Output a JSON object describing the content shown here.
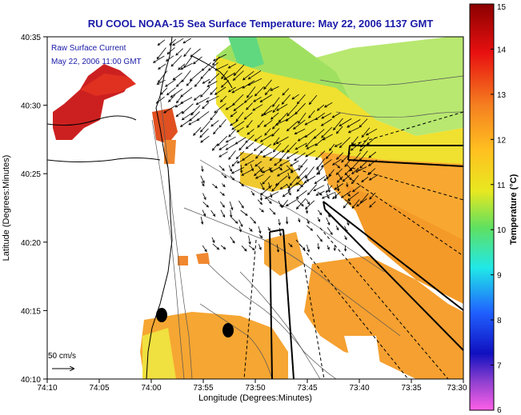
{
  "title": "RU COOL  NOAA-15  Sea Surface Temperature:  May 22, 2006 1137 GMT",
  "current_label": {
    "line1": "Raw Surface Current",
    "line2": "May 22, 2006 11:00 GMT"
  },
  "scale": {
    "label": "50 cm/s"
  },
  "axes": {
    "xlabel": "Longitude (Degrees:Minutes)",
    "ylabel": "Latitude (Degrees:Minutes)",
    "xticks": [
      "74:10",
      "74:05",
      "74:00",
      "73:55",
      "73:50",
      "73:45",
      "73:40",
      "73:35",
      "73:30"
    ],
    "yticks": [
      "40:35",
      "40:30",
      "40:25",
      "40:20",
      "40:15",
      "40:10"
    ]
  },
  "colorbar": {
    "label": "Temperature (°C)",
    "ticks": [
      "15",
      "14",
      "13",
      "12",
      "11",
      "10",
      "9",
      "8",
      "7",
      "6"
    ],
    "min": 6,
    "max": 15
  }
}
